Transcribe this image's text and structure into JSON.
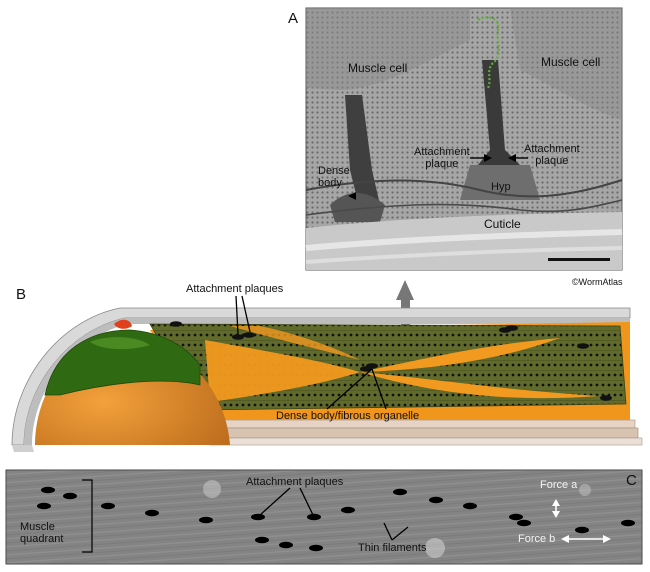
{
  "panel_a": {
    "letter": "A",
    "labels": {
      "muscle_cell_left": "Muscle cell",
      "muscle_cell_right": "Muscle cell",
      "dense_body": "Dense\nbody",
      "attachment_plaque_left": "Attachment\nplaque",
      "attachment_plaque_right": "Attachment\nplaque",
      "hyp": "Hyp",
      "cuticle": "Cuticle"
    },
    "copyright": "©WormAtlas"
  },
  "panel_b": {
    "letter": "B",
    "labels": {
      "attachment_plaques": "Attachment plaques",
      "dense_body_fibrous": "Dense body/fibrous organelle"
    }
  },
  "panel_c": {
    "letter": "C",
    "labels": {
      "attachment_plaques": "Attachment plaques",
      "muscle_quadrant": "Muscle\nquadrant",
      "thin_filaments": "Thin filaments",
      "force_a": "Force a",
      "force_b": "Force b"
    }
  },
  "colors": {
    "muscle_green": "#5e6b2a",
    "orange": "#f29a1f",
    "dark_green": "#2f6a12",
    "em_gray": "#9a9a9a"
  }
}
